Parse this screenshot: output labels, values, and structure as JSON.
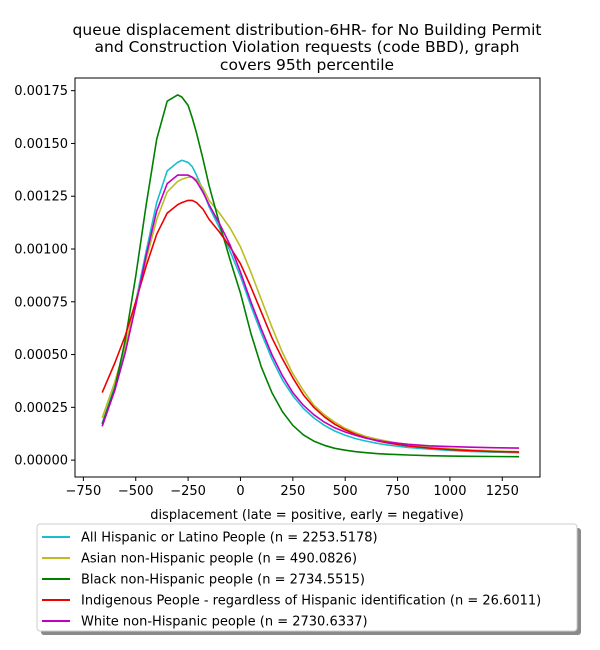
{
  "chart_data": {
    "type": "line",
    "title_lines": [
      "queue displacement distribution-6HR-  for No Building Permit",
      "and Construction Violation  requests (code BBD), graph",
      "covers 95th percentile"
    ],
    "xlabel": "displacement (late = positive, early = negative)",
    "ylabel": "",
    "xlim": [
      -790,
      1430
    ],
    "ylim": [
      -8e-05,
      0.00181
    ],
    "xticks": [
      -750,
      -500,
      -250,
      0,
      250,
      500,
      750,
      1000,
      1250
    ],
    "xtick_labels": [
      "−750",
      "−500",
      "−250",
      "0",
      "250",
      "500",
      "750",
      "1000",
      "1250"
    ],
    "yticks": [
      0,
      0.00025,
      0.0005,
      0.00075,
      0.001,
      0.00125,
      0.0015,
      0.00175
    ],
    "ytick_labels": [
      "0.00000",
      "0.00025",
      "0.00050",
      "0.00075",
      "0.00100",
      "0.00125",
      "0.00150",
      "0.00175"
    ],
    "grid": false,
    "legend_position": "below",
    "x": [
      -660,
      -600,
      -550,
      -500,
      -450,
      -400,
      -350,
      -300,
      -280,
      -250,
      -230,
      -210,
      -180,
      -150,
      -100,
      -50,
      0,
      50,
      100,
      150,
      200,
      250,
      300,
      350,
      400,
      450,
      500,
      550,
      600,
      650,
      700,
      750,
      800,
      900,
      1000,
      1100,
      1200,
      1330
    ],
    "series": [
      {
        "name": "All Hispanic or Latino People (n = 2253.5178)",
        "color": "#17becf",
        "values": [
          0.000175,
          0.00035,
          0.00053,
          0.00075,
          0.00099,
          0.00122,
          0.00137,
          0.00141,
          0.00142,
          0.00141,
          0.00139,
          0.00135,
          0.00128,
          0.0012,
          0.0011,
          0.00099,
          0.00087,
          0.00073,
          0.0006,
          0.00048,
          0.00038,
          0.000305,
          0.000245,
          0.0002,
          0.000165,
          0.000138,
          0.000118,
          0.000102,
          9e-05,
          8e-05,
          7.2e-05,
          6.6e-05,
          6e-05,
          5.2e-05,
          4.6e-05,
          4.1e-05,
          3.8e-05,
          3.5e-05
        ]
      },
      {
        "name": "Asian non-Hispanic people (n = 490.0826)",
        "color": "#bcbd22",
        "values": [
          0.0002,
          0.00037,
          0.00054,
          0.00075,
          0.00095,
          0.00114,
          0.00127,
          0.00132,
          0.00133,
          0.00134,
          0.00134,
          0.00133,
          0.00129,
          0.00123,
          0.00117,
          0.0011,
          0.00101,
          0.00089,
          0.00076,
          0.00063,
          0.00051,
          0.00041,
          0.00033,
          0.00026,
          0.000215,
          0.00018,
          0.00015,
          0.00013,
          0.000112,
          0.0001,
          9e-05,
          8e-05,
          7.3e-05,
          6.2e-05,
          5.4e-05,
          4.8e-05,
          4.4e-05,
          4e-05
        ]
      },
      {
        "name": "Black non-Hispanic people (n = 2734.5515)",
        "color": "#008000",
        "values": [
          0.00017,
          0.00034,
          0.00057,
          0.00087,
          0.00121,
          0.00152,
          0.0017,
          0.00173,
          0.00172,
          0.00168,
          0.00162,
          0.00155,
          0.00143,
          0.0013,
          0.00112,
          0.00095,
          0.00079,
          0.0006,
          0.00044,
          0.00032,
          0.00023,
          0.000165,
          0.00012,
          9e-05,
          7e-05,
          5.6e-05,
          4.7e-05,
          4e-05,
          3.5e-05,
          3.1e-05,
          2.8e-05,
          2.6e-05,
          2.4e-05,
          2.1e-05,
          1.9e-05,
          1.8e-05,
          1.7e-05,
          1.6e-05
        ]
      },
      {
        "name": "Indigenous People - regardless of Hispanic identification (n = 26.6011)",
        "color": "#ee0000",
        "values": [
          0.00032,
          0.00046,
          0.00059,
          0.00075,
          0.00092,
          0.00107,
          0.00117,
          0.00121,
          0.00122,
          0.00123,
          0.00123,
          0.00122,
          0.00119,
          0.00114,
          0.00108,
          0.00101,
          0.00093,
          0.00082,
          0.0007,
          0.00058,
          0.00048,
          0.00039,
          0.00031,
          0.00025,
          0.000205,
          0.00017,
          0.000143,
          0.000122,
          0.000105,
          9.2e-05,
          8.2e-05,
          7.4e-05,
          6.7e-05,
          5.7e-05,
          5e-05,
          4.5e-05,
          4.1e-05,
          3.8e-05
        ]
      },
      {
        "name": "White non-Hispanic people (n = 2730.6337)",
        "color": "#bf00bf",
        "values": [
          0.00016,
          0.00033,
          0.00051,
          0.00073,
          0.00097,
          0.00118,
          0.00131,
          0.00135,
          0.00135,
          0.00135,
          0.00134,
          0.00132,
          0.00127,
          0.00121,
          0.00112,
          0.00102,
          0.00089,
          0.00075,
          0.00062,
          0.0005,
          0.0004,
          0.00032,
          0.00026,
          0.000215,
          0.00018,
          0.000153,
          0.000133,
          0.000117,
          0.000104,
          9.4e-05,
          8.6e-05,
          8e-05,
          7.5e-05,
          6.8e-05,
          6.4e-05,
          6.1e-05,
          5.9e-05,
          5.7e-05
        ]
      }
    ]
  }
}
